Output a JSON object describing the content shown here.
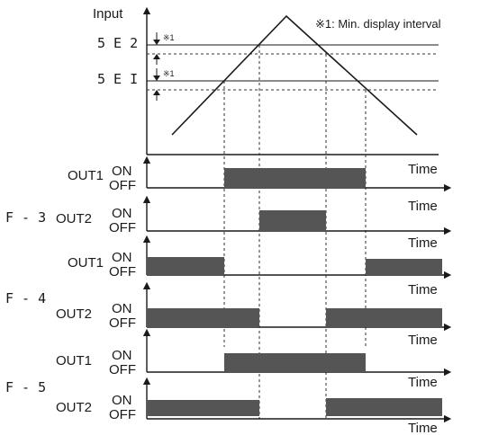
{
  "input_axis_label": "Input",
  "note": "※1: Min. display interval",
  "note_mark": "※1",
  "setpoint_labels": [
    "5 Ε 2",
    "5 Ε Ι"
  ],
  "time_label": "Time",
  "on_label": "ON",
  "off_label": "OFF",
  "mode_labels": [
    "F - 3",
    "F - 4",
    "F - 5"
  ],
  "timing_rows": [
    {
      "mode": "F - 3",
      "output": "OUT1",
      "state": "on between the rising and falling crossings of St1"
    },
    {
      "mode": "F - 3",
      "output": "OUT2",
      "state": "on between the rising and falling crossings of St2"
    },
    {
      "mode": "F - 4",
      "output": "OUT1",
      "state": "on outside the St1 crossings"
    },
    {
      "mode": "F - 4",
      "output": "OUT2",
      "state": "on outside the St2 crossings"
    },
    {
      "mode": "F - 5",
      "output": "OUT1",
      "state": "on between the St1 crossings"
    },
    {
      "mode": "F - 5",
      "output": "OUT2",
      "state": "on outside the St2 crossings"
    }
  ],
  "colors": {
    "signal": "#555555",
    "line": "#1a1a1a",
    "dash": "#333333"
  }
}
